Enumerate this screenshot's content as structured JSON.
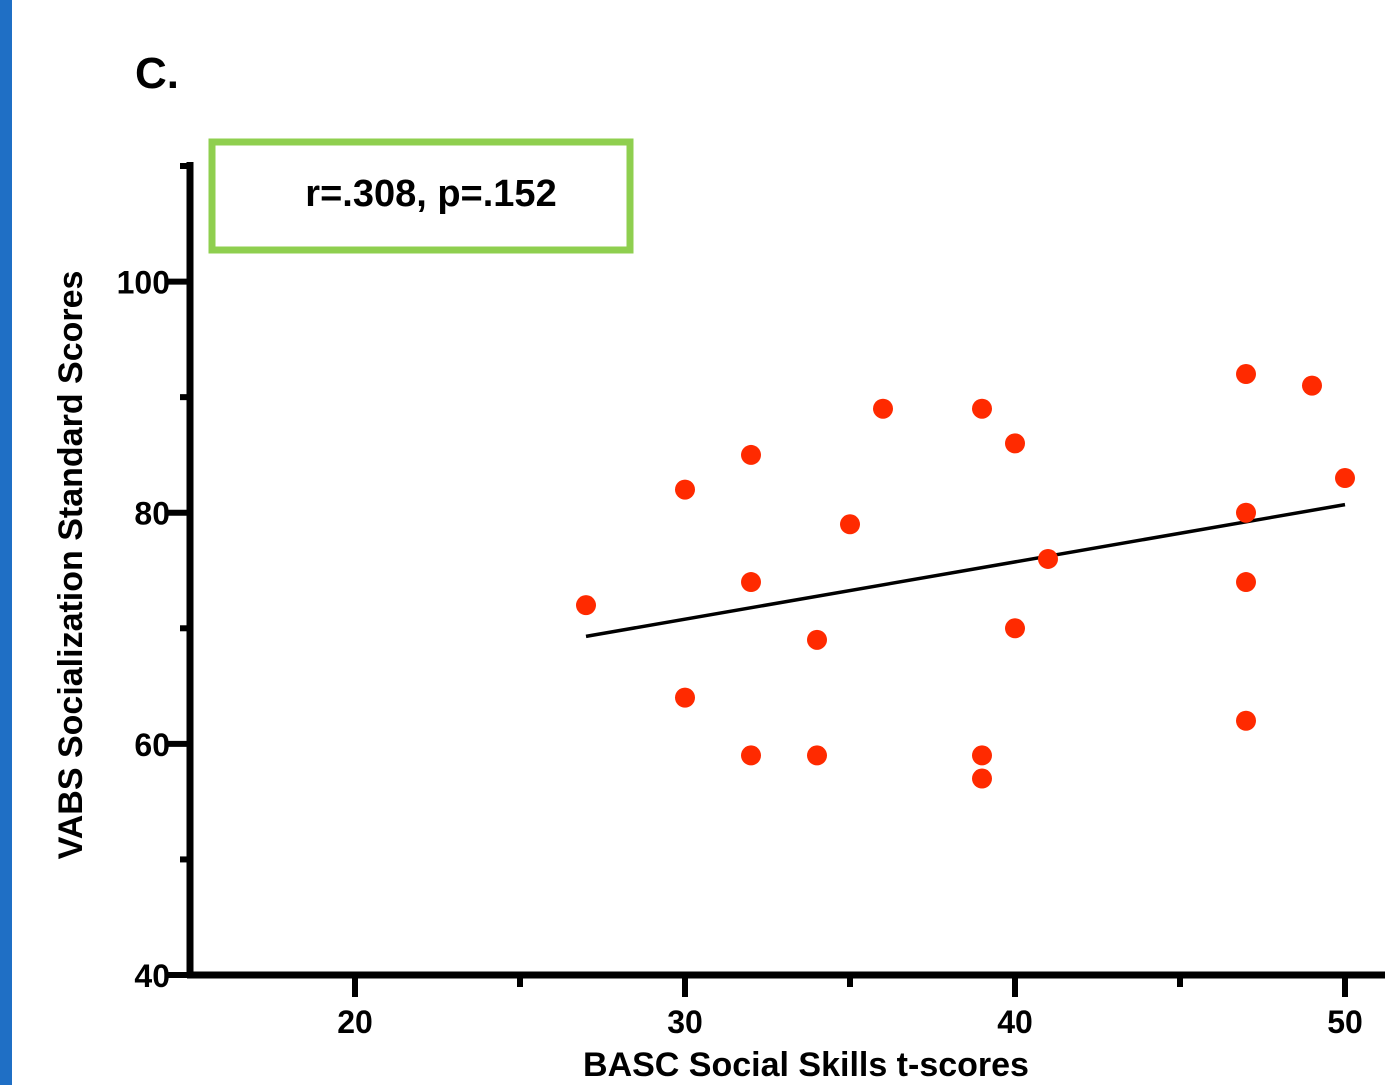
{
  "chart_data": {
    "type": "scatter",
    "panel_label": "C.",
    "annotation": "r=.308, p=.152",
    "x_label": "BASC Social Skills t-scores",
    "y_label": "VABS Socialization Standard Scores",
    "xlim": [
      15,
      51
    ],
    "ylim": [
      40,
      110
    ],
    "xticks": [
      20,
      30,
      40,
      50
    ],
    "x_minor_ticks": [
      25,
      35,
      45
    ],
    "yticks": [
      40,
      60,
      80,
      100
    ],
    "y_minor_ticks": [
      50,
      70,
      90,
      110
    ],
    "color": "#ff2a00",
    "series": [
      {
        "x": [
          27,
          30,
          30,
          32,
          32,
          32,
          34,
          34,
          35,
          36,
          39,
          39,
          39,
          40,
          40,
          41,
          47,
          47,
          47,
          47,
          49,
          50
        ],
        "y": [
          72,
          82,
          64,
          85,
          74,
          59,
          69,
          59,
          79,
          89,
          89,
          59,
          57,
          86,
          70,
          76,
          92,
          80,
          74,
          62,
          91,
          83
        ]
      }
    ],
    "fit_line": {
      "x": [
        27,
        50
      ],
      "y": [
        69.3,
        80.7
      ],
      "color": "#000000"
    }
  }
}
